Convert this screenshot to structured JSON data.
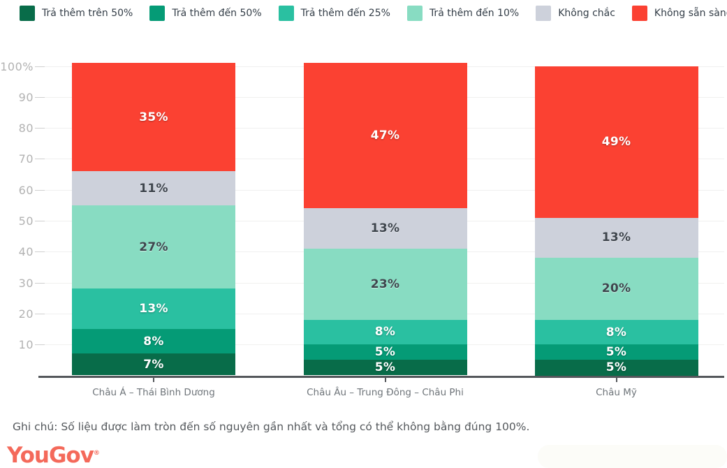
{
  "chart_data": {
    "type": "bar",
    "stacked": true,
    "orientation": "vertical",
    "title": "",
    "categories": [
      "Châu Á – Thái Bình Dương",
      "Châu Âu – Trung Đông – Châu Phi",
      "Châu Mỹ"
    ],
    "series": [
      {
        "name": "Trả thêm trên 50%",
        "color": "#086c49",
        "label_color": "light",
        "values": [
          7,
          5,
          5
        ]
      },
      {
        "name": "Trả thêm đến 50%",
        "color": "#059b76",
        "label_color": "light",
        "values": [
          8,
          5,
          5
        ]
      },
      {
        "name": "Trả thêm đến 25%",
        "color": "#2ac0a1",
        "label_color": "light",
        "values": [
          13,
          8,
          8
        ]
      },
      {
        "name": "Trả thêm đến 10%",
        "color": "#88dcc2",
        "label_color": "dark",
        "values": [
          27,
          23,
          20
        ]
      },
      {
        "name": "Không chắc",
        "color": "#cdd1db",
        "label_color": "dark",
        "values": [
          11,
          13,
          13
        ]
      },
      {
        "name": "Không sẵn sàng trả thêm",
        "color": "#fb4132",
        "label_color": "light",
        "values": [
          35,
          47,
          49
        ]
      }
    ],
    "value_suffix": "%",
    "y_axis": {
      "min": 0,
      "max": 100,
      "step": 10,
      "ticks": [
        "10",
        "20",
        "30",
        "40",
        "50",
        "60",
        "70",
        "80",
        "90",
        "100%"
      ]
    },
    "grid": true,
    "legend_position": "top"
  },
  "footer": {
    "note": "Ghi chú: Số liệu được làm tròn đến số nguyên gần nhất và tổng có thể không bằng đúng 100%.",
    "logo": "YouGov"
  }
}
